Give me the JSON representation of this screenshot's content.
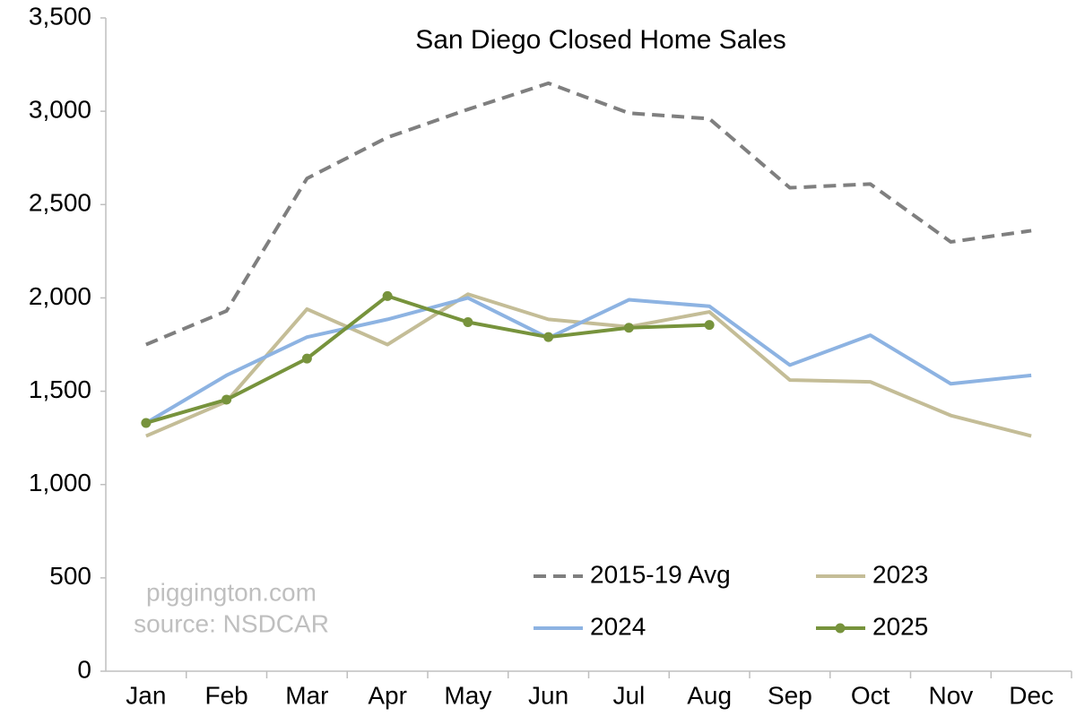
{
  "chart_data": {
    "type": "line",
    "title": "San Diego Closed Home Sales",
    "annotations": [
      "piggington.com",
      "source: NSDCAR"
    ],
    "categories": [
      "Jan",
      "Feb",
      "Mar",
      "Apr",
      "May",
      "Jun",
      "Jul",
      "Aug",
      "Sep",
      "Oct",
      "Nov",
      "Dec"
    ],
    "series": [
      {
        "name": "2015-19 Avg",
        "color": "#7f7f7f",
        "dashed": true,
        "values": [
          1750,
          1930,
          2640,
          2860,
          3010,
          3150,
          2990,
          2960,
          2590,
          2610,
          2300,
          2360
        ]
      },
      {
        "name": "2023",
        "color": "#c4bd97",
        "values": [
          1260,
          1445,
          1940,
          1750,
          2020,
          1885,
          1845,
          1925,
          1560,
          1550,
          1370,
          1260
        ]
      },
      {
        "name": "2024",
        "color": "#8db3e2",
        "values": [
          1330,
          1585,
          1790,
          1885,
          2000,
          1785,
          1990,
          1955,
          1640,
          1800,
          1540,
          1585
        ]
      },
      {
        "name": "2025",
        "color": "#77933c",
        "markers": true,
        "values": [
          1330,
          1455,
          1675,
          2010,
          1870,
          1790,
          1840,
          1855,
          null,
          null,
          null,
          null
        ]
      }
    ],
    "ylim": [
      0,
      3500
    ],
    "yticks": [
      0,
      500,
      {
        "value": 1000,
        "label": "1,000"
      },
      {
        "value": 1500,
        "label": "1,500"
      },
      {
        "value": 2000,
        "label": "2,000"
      },
      {
        "value": 2500,
        "label": "2,500"
      },
      {
        "value": 3000,
        "label": "3,000"
      },
      {
        "value": 3500,
        "label": "3,500"
      }
    ],
    "grid": false,
    "legend": "lower right"
  }
}
